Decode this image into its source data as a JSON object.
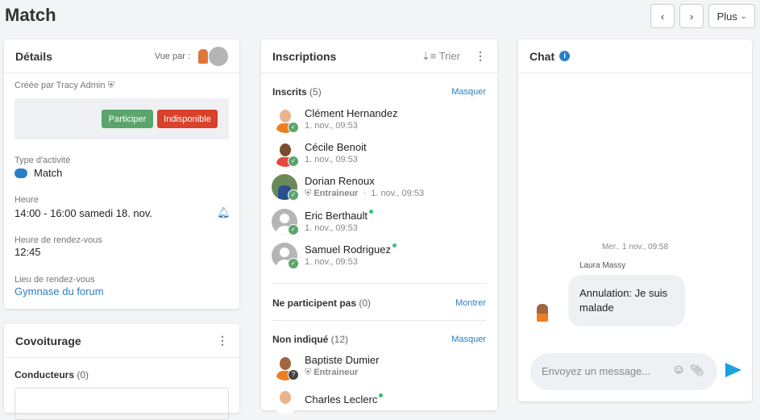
{
  "header": {
    "title": "Match",
    "prev": "‹",
    "next": "›",
    "more": "Plus"
  },
  "details": {
    "title": "Détails",
    "seen_by": "Vue par :",
    "created_by": "Créée par Tracy Admin",
    "participate": "Participer",
    "unavailable": "Indisponible",
    "type_label": "Type d'activité",
    "type_value": "Match",
    "type_color": "#2a7fc4",
    "time_label": "Heure",
    "time_value": "14:00 - 16:00 samedi 18. nov.",
    "meet_label": "Heure de rendez-vous",
    "meet_value": "12:45",
    "place_label": "Lieu de rendez-vous",
    "place_value": "Gymnase du forum"
  },
  "carpool": {
    "title": "Covoiturage",
    "drivers": "Conducteurs",
    "drivers_count": "(0)"
  },
  "inscriptions": {
    "title": "Inscriptions",
    "sort": "Trier",
    "registered": {
      "label": "Inscrits",
      "count": "(5)",
      "action": "Masquer"
    },
    "members": [
      {
        "name": "Clément Hernandez",
        "date": "1. nov., 09:53",
        "role": "",
        "online": false
      },
      {
        "name": "Cécile Benoit",
        "date": "1. nov., 09:53",
        "role": "",
        "online": false
      },
      {
        "name": "Dorian Renoux",
        "date": "1. nov., 09:53",
        "role": "Entraineur",
        "online": false
      },
      {
        "name": "Eric Berthault",
        "date": "1. nov., 09:53",
        "role": "",
        "online": true
      },
      {
        "name": "Samuel Rodriguez",
        "date": "1. nov., 09:53",
        "role": "",
        "online": true
      }
    ],
    "not_participating": {
      "label": "Ne participent pas",
      "count": "(0)",
      "action": "Montrer"
    },
    "unknown": {
      "label": "Non indiqué",
      "count": "(12)",
      "action": "Masquer"
    },
    "unknown_members": [
      {
        "name": "Baptiste Dumier",
        "role": "Entraineur"
      },
      {
        "name": "Charles Leclerc",
        "online": true
      }
    ]
  },
  "chat": {
    "title": "Chat",
    "date": "Mer.. 1 nov., 09:58",
    "author": "Laura Massy",
    "message": "Annulation: Je suis malade",
    "placeholder": "Envoyez un message..."
  },
  "colors": {
    "accent": "#2a7fc4",
    "success": "#5ba56c",
    "danger": "#d9412b",
    "send": "#1ba1e2"
  }
}
